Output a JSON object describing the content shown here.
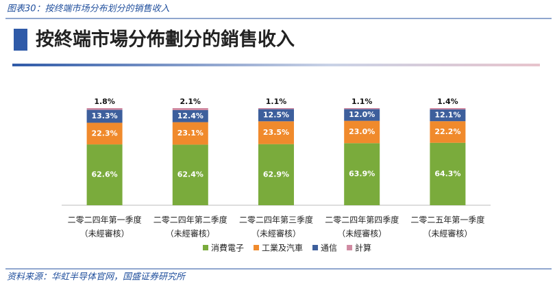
{
  "chart_data": {
    "type": "stacked-bar",
    "caption": "图表30：按终端市场分布划分的销售收入",
    "title": "按終端市場分佈劃分的銷售收入",
    "source": "资料来源：华虹半导体官网，国盛证券研究所",
    "categories": [
      [
        "二零二四年第一季度",
        "（未經審核）"
      ],
      [
        "二零二四年第二季度",
        "（未經審核）"
      ],
      [
        "二零二四年第三季度",
        "（未經審核）"
      ],
      [
        "二零二四年第四季度",
        "（未經審核）"
      ],
      [
        "二零二五年第一季度",
        "（未經審核）"
      ]
    ],
    "series": [
      {
        "name": "消費電子",
        "color": "#7aab3c",
        "values": [
          62.6,
          62.4,
          62.9,
          63.9,
          64.3
        ],
        "value_labels": [
          "62.6%",
          "62.4%",
          "62.9%",
          "63.9%",
          "64.3%"
        ]
      },
      {
        "name": "工業及汽車",
        "color": "#f08a2c",
        "values": [
          22.3,
          23.1,
          23.5,
          23.0,
          22.2
        ],
        "value_labels": [
          "22.3%",
          "23.1%",
          "23.5%",
          "23.0%",
          "22.2%"
        ]
      },
      {
        "name": "通信",
        "color": "#3d5f9c",
        "values": [
          13.3,
          12.4,
          12.5,
          12.0,
          12.1
        ],
        "value_labels": [
          "13.3%",
          "12.4%",
          "12.5%",
          "12.0%",
          "12.1%"
        ]
      },
      {
        "name": "計算",
        "color": "#d08aa2",
        "values": [
          1.8,
          2.1,
          1.1,
          1.1,
          1.4
        ],
        "value_labels": [
          "1.8%",
          "2.1%",
          "1.1%",
          "1.1%",
          "1.4%"
        ]
      }
    ]
  }
}
